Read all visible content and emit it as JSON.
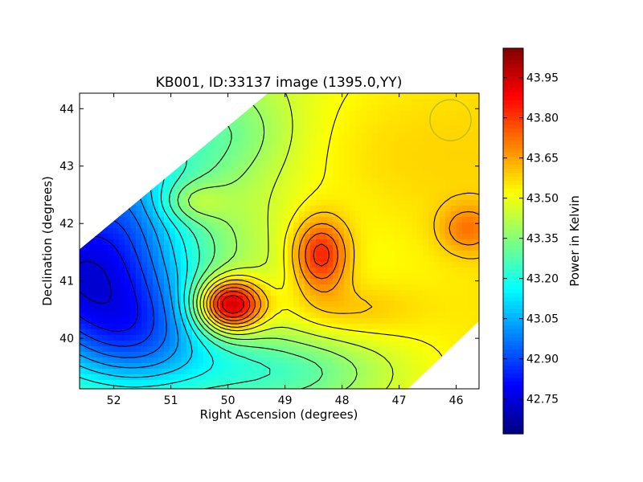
{
  "chart_data": {
    "type": "heatmap",
    "title": "KB001, ID:33137 image (1395.0,YY)",
    "xlabel": "Right Ascension (degrees)",
    "ylabel": "Declination (degrees)",
    "xlim": [
      52.6,
      45.6
    ],
    "ylim": [
      39.12,
      44.27
    ],
    "x_ticks": [
      "52",
      "51",
      "50",
      "49",
      "48",
      "47",
      "46"
    ],
    "y_ticks": [
      "40",
      "41",
      "42",
      "43",
      "44"
    ],
    "colorbar": {
      "label": "Power in Kelvin",
      "range": [
        42.62,
        44.06
      ],
      "ticks": [
        "42.75",
        "42.90",
        "43.05",
        "43.20",
        "43.35",
        "43.50",
        "43.65",
        "43.80",
        "43.95"
      ],
      "colormap": "jet"
    },
    "footprint": {
      "shape": "diamond",
      "vertices": [
        [
          52.6,
          41.55
        ],
        [
          49.3,
          44.27
        ],
        [
          45.6,
          44.27
        ],
        [
          45.6,
          40.3
        ],
        [
          46.85,
          39.12
        ],
        [
          52.6,
          39.12
        ]
      ]
    },
    "beam_circle": {
      "color": "#bcbc28",
      "center": [
        46.1,
        43.8
      ],
      "radius": 0.36
    },
    "features": [
      {
        "label": "peak",
        "ra": 49.98,
        "dec": 40.58,
        "value": 44.01
      },
      {
        "label": "secondary peak",
        "ra": 48.38,
        "dec": 41.32,
        "value": 43.78
      },
      {
        "label": "local maximum",
        "ra": 50.65,
        "dec": 42.38,
        "value": 43.55
      },
      {
        "label": "local maximum",
        "ra": 45.85,
        "dec": 41.9,
        "value": 43.6
      },
      {
        "label": "minimum",
        "ra": 52.45,
        "dec": 41.15,
        "value": 42.63
      }
    ]
  }
}
